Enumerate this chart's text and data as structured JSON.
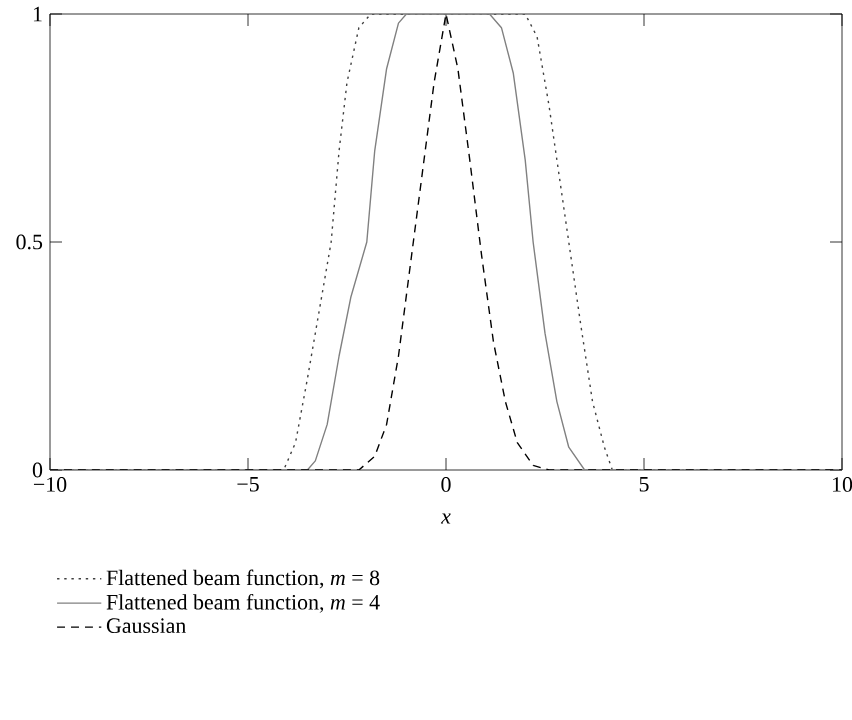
{
  "chart_data": {
    "type": "line",
    "xlabel": "x",
    "xlim": [
      -10,
      10
    ],
    "ylim": [
      0,
      1
    ],
    "xticks": [
      {
        "value": -10,
        "label": "−10"
      },
      {
        "value": -5,
        "label": "−5"
      },
      0,
      5,
      10
    ],
    "yticks": [
      0,
      0.5,
      1
    ],
    "grid": false,
    "legend": "bottom",
    "marker": "none",
    "series": [
      {
        "name": "Flattened beam function, *m* = 8",
        "color": "#404040",
        "line_style": "dotted",
        "x": [
          -10,
          -4.1,
          -3.8,
          -3.5,
          -3.2,
          -2.9,
          -2.7,
          -2.5,
          -2.2,
          -1.9,
          2.0,
          2.3,
          2.6,
          2.9,
          3.1,
          3.4,
          3.7,
          4.0,
          4.2,
          10
        ],
        "values": [
          0,
          0,
          0.06,
          0.2,
          0.35,
          0.5,
          0.7,
          0.85,
          0.97,
          1,
          1,
          0.95,
          0.8,
          0.62,
          0.5,
          0.32,
          0.15,
          0.05,
          0,
          0
        ]
      },
      {
        "name": "Flattened beam function, *m* = 4",
        "color": "#808080",
        "line_style": "solid",
        "x": [
          -10,
          -3.5,
          -3.3,
          -3.0,
          -2.7,
          -2.4,
          -2.0,
          -1.8,
          -1.5,
          -1.2,
          -1.0,
          1.1,
          1.4,
          1.7,
          2.0,
          2.2,
          2.5,
          2.8,
          3.1,
          3.5,
          10
        ],
        "values": [
          0,
          0,
          0.02,
          0.1,
          0.25,
          0.38,
          0.5,
          0.7,
          0.88,
          0.98,
          1,
          1,
          0.97,
          0.87,
          0.68,
          0.5,
          0.3,
          0.15,
          0.05,
          0,
          0
        ]
      },
      {
        "name": "Gaussian",
        "color": "#000000",
        "line_style": "dashed",
        "x": [
          -10,
          -3,
          -2.2,
          -1.8,
          -1.5,
          -1.2,
          -0.9,
          -0.6,
          -0.3,
          0,
          0.3,
          0.6,
          0.9,
          1.2,
          1.5,
          1.8,
          2.2,
          2.6,
          10
        ],
        "values": [
          0,
          0,
          0,
          0.03,
          0.1,
          0.25,
          0.45,
          0.65,
          0.85,
          1,
          0.88,
          0.68,
          0.47,
          0.28,
          0.15,
          0.06,
          0.01,
          0,
          0
        ]
      }
    ]
  }
}
